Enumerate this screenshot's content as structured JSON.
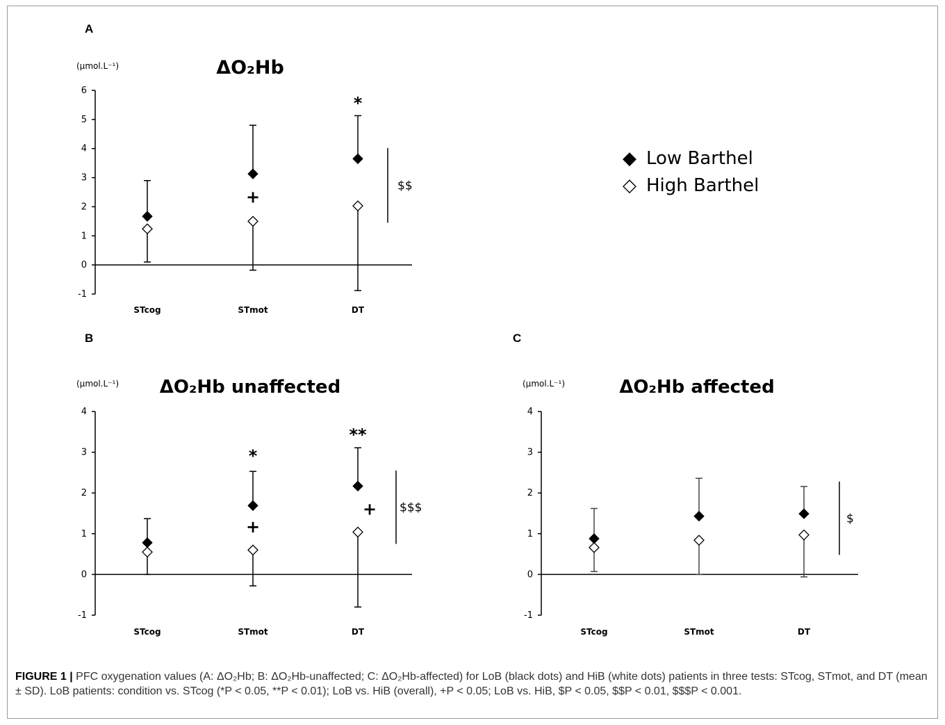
{
  "legend": {
    "low": {
      "symbol": "◆",
      "label": "Low Barthel"
    },
    "high": {
      "symbol": "◇",
      "label": "High Barthel"
    }
  },
  "caption": {
    "figure_label": "FIGURE 1 |",
    "text": "PFC oxygenation values (A: ΔO₂Hb; B: ΔO₂Hb-unaffected; C: ΔO₂Hb-affected) for LoB (black dots) and HiB (white dots) patients in three tests: STcog, STmot, and DT (mean ± SD). LoB patients: condition vs. STcog (*P < 0.05, **P < 0.01); LoB vs. HiB (overall), +P < 0.05; LoB vs. HiB, $P < 0.05, $$P < 0.01, $$$P < 0.001."
  },
  "chart_data": [
    {
      "panel": "A",
      "type": "scatter",
      "title": "ΔO₂Hb",
      "ylabel": "(µmol.L⁻¹)",
      "ylim": [
        -1,
        6
      ],
      "yticks": [
        -1,
        0,
        1,
        2,
        3,
        4,
        5,
        6
      ],
      "categories": [
        "STcog",
        "STmot",
        "DT"
      ],
      "series": [
        {
          "name": "Low Barthel",
          "marker": "filled-diamond",
          "values": [
            1.67,
            3.13,
            3.65
          ],
          "error_top": [
            2.9,
            4.8,
            5.13
          ]
        },
        {
          "name": "High Barthel",
          "marker": "open-diamond",
          "values": [
            1.24,
            1.5,
            2.03
          ],
          "error_bottom": [
            0.1,
            -0.18,
            -0.88
          ]
        }
      ],
      "annotations": [
        {
          "text": "*",
          "category": "DT",
          "y": 5.65
        },
        {
          "text": "+",
          "category": "STmot",
          "y": 2.33
        }
      ],
      "bracket": {
        "text": "$$",
        "from": 1.45,
        "to": 4.02
      }
    },
    {
      "panel": "B",
      "type": "scatter",
      "title": "ΔO₂Hb unaffected",
      "ylabel": "(µmol.L⁻¹)",
      "ylim": [
        -1,
        4
      ],
      "yticks": [
        -1,
        0,
        1,
        2,
        3,
        4
      ],
      "categories": [
        "STcog",
        "STmot",
        "DT"
      ],
      "series": [
        {
          "name": "Low Barthel",
          "marker": "filled-diamond",
          "values": [
            0.78,
            1.69,
            2.17
          ],
          "error_top": [
            1.37,
            2.53,
            3.11
          ]
        },
        {
          "name": "High Barthel",
          "marker": "open-diamond",
          "values": [
            0.55,
            0.6,
            1.04
          ],
          "error_bottom": [
            0.0,
            -0.28,
            -0.8
          ]
        }
      ],
      "annotations": [
        {
          "text": "*",
          "category": "STmot",
          "y": 2.98
        },
        {
          "text": "**",
          "category": "DT",
          "y": 3.5
        },
        {
          "text": "+",
          "category": "STmot",
          "y": 1.17
        },
        {
          "text": "+",
          "category": "DT+",
          "y": 1.6
        }
      ],
      "bracket": {
        "text": "$$$",
        "from": 0.75,
        "to": 2.55
      }
    },
    {
      "panel": "C",
      "type": "scatter",
      "title": "ΔO₂Hb affected",
      "ylabel": "(µmol.L⁻¹)",
      "ylim": [
        -1,
        4
      ],
      "yticks": [
        -1,
        0,
        1,
        2,
        3,
        4
      ],
      "categories": [
        "STcog",
        "STmot",
        "DT"
      ],
      "series": [
        {
          "name": "Low Barthel",
          "marker": "filled-diamond",
          "values": [
            0.88,
            1.43,
            1.49
          ],
          "error_top": [
            1.62,
            2.36,
            2.16
          ]
        },
        {
          "name": "High Barthel",
          "marker": "open-diamond",
          "values": [
            0.66,
            0.84,
            0.97
          ],
          "error_bottom": [
            0.07,
            0.0,
            -0.06
          ]
        }
      ],
      "annotations": [],
      "bracket": {
        "text": "$",
        "from": 0.48,
        "to": 2.28
      }
    }
  ]
}
